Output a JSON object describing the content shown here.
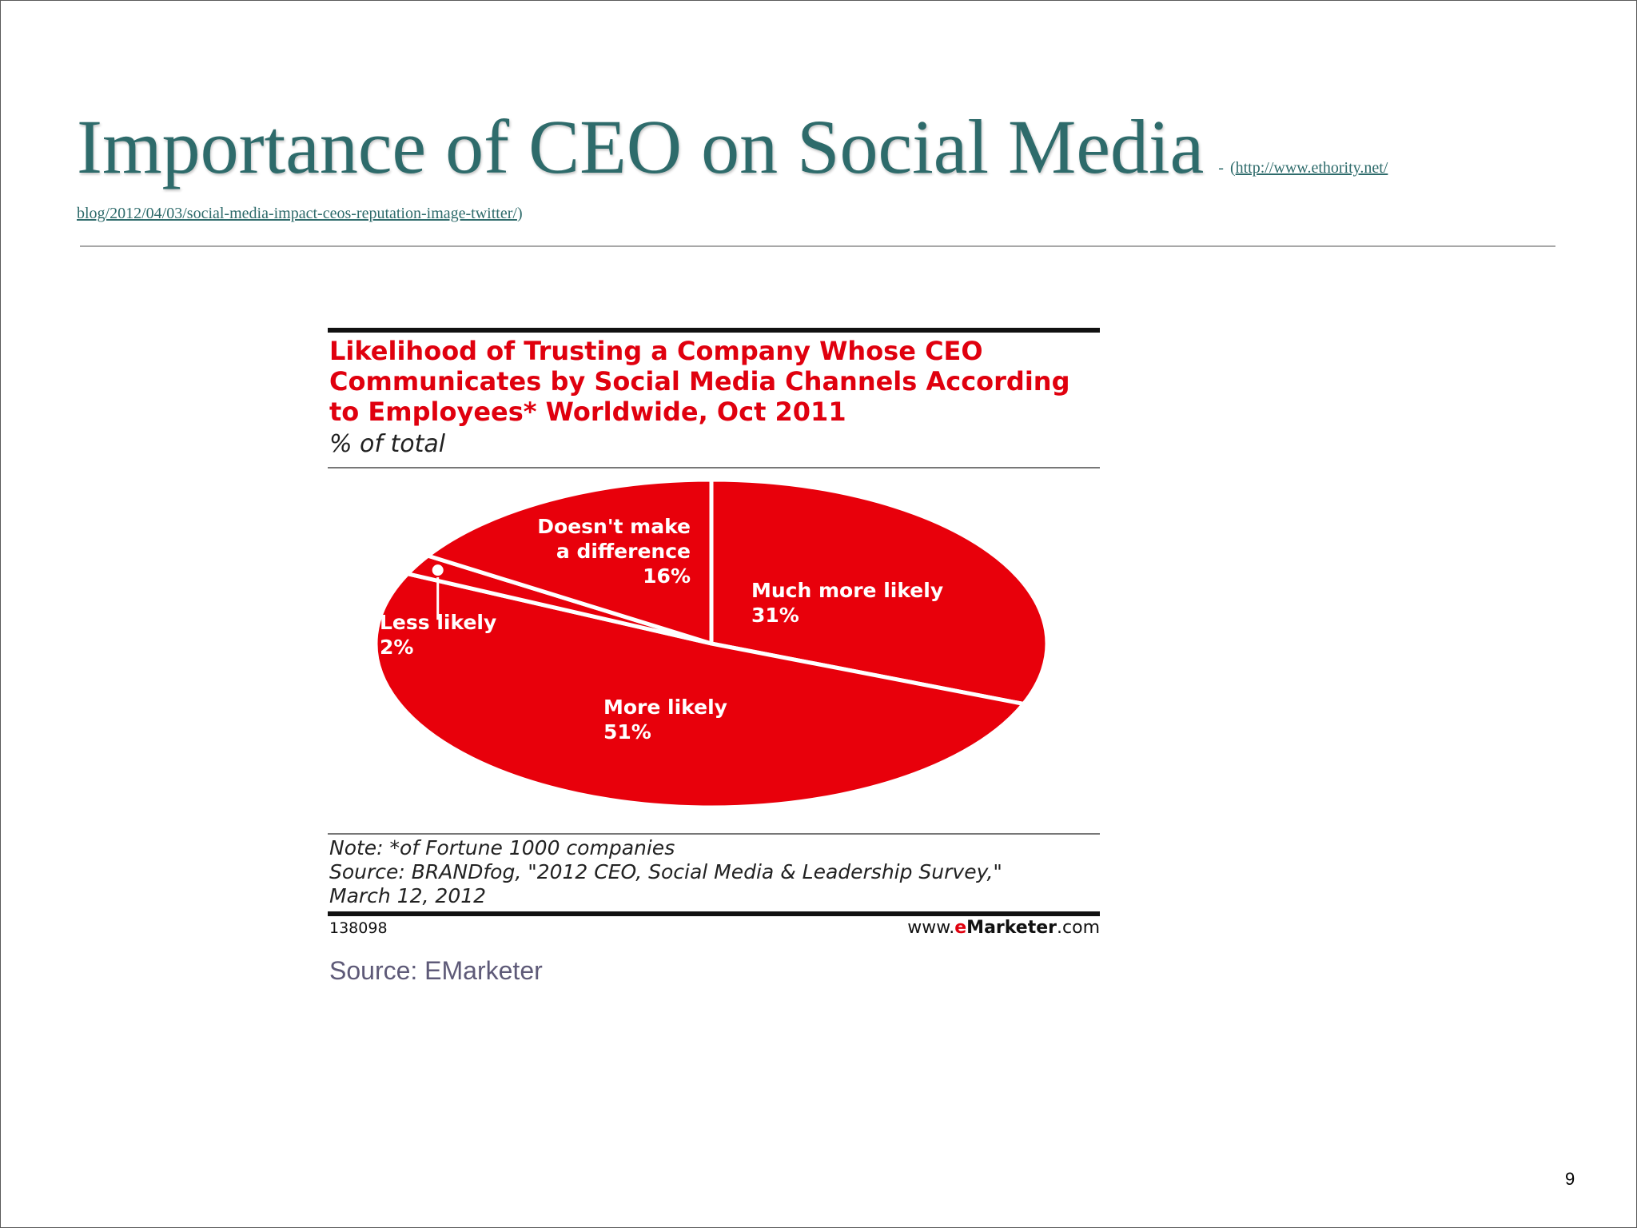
{
  "slide": {
    "title": "Importance of CEO on Social Media",
    "link_dash": "-",
    "link_open_paren": "(",
    "link_close_paren": ")",
    "link_line1": "http://www.ethority.net/",
    "link_line2": "blog/2012/04/03/social-media-impact-ceos-reputation-image-twitter/",
    "image_caption": "Source: EMarketer",
    "page_number": "9"
  },
  "chart_data": {
    "type": "pie",
    "title": "Likelihood of Trusting a Company Whose CEO Communicates by Social Media Channels According to Employees* Worldwide, Oct 2011",
    "subtitle": "% of total",
    "slices": [
      {
        "label": "Much more likely",
        "value": 31,
        "value_label": "31%"
      },
      {
        "label": "More likely",
        "value": 51,
        "value_label": "51%"
      },
      {
        "label": "Less likely",
        "value": 2,
        "value_label": "2%"
      },
      {
        "label": "Doesn't make a difference",
        "label_lines": [
          "Doesn't make",
          "a difference"
        ],
        "value": 16,
        "value_label": "16%"
      }
    ],
    "slice_color": "#e8000b",
    "note": "Note: *of Fortune 1000 companies",
    "source_line1": "Source: BRANDfog, \"2012 CEO, Social Media & Leadership Survey,\"",
    "source_line2": "March 12, 2012",
    "chart_id": "138098",
    "brand_prefix": "www.",
    "brand_e": "e",
    "brand_name": "Marketer",
    "brand_suffix": ".com"
  }
}
